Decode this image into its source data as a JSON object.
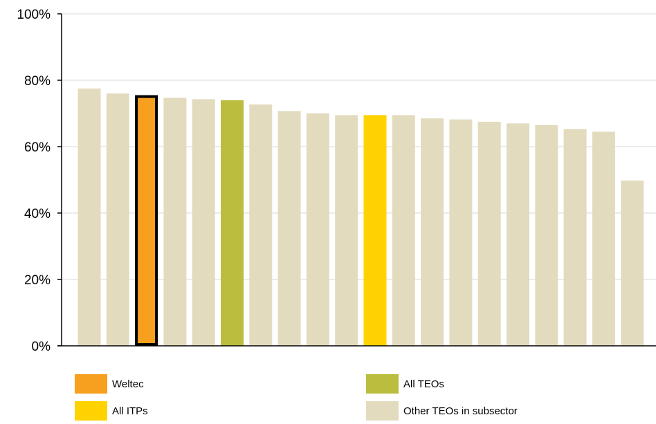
{
  "colors": {
    "weltec": "#F7A01F",
    "all_teos": "#BBBD3F",
    "all_itps": "#FFD200",
    "other": "#E3DBBE",
    "axis": "#000000",
    "grid": "#D9D9D9"
  },
  "chart_data": {
    "type": "bar",
    "title": "",
    "xlabel": "",
    "ylabel": "",
    "ylim": [
      0,
      100
    ],
    "yticks": [
      "0%",
      "20%",
      "40%",
      "60%",
      "80%",
      "100%"
    ],
    "grid": true,
    "legend_position": "bottom",
    "values": [
      77.5,
      76,
      75.5,
      74.7,
      74.3,
      74,
      72.7,
      70.7,
      70,
      69.5,
      69.5,
      69.5,
      68.5,
      68.2,
      67.5,
      67,
      66.5,
      65.3,
      64.5,
      49.8
    ],
    "groups": [
      "other",
      "other",
      "weltec",
      "other",
      "other",
      "all_teos",
      "other",
      "other",
      "other",
      "other",
      "all_itps",
      "other",
      "other",
      "other",
      "other",
      "other",
      "other",
      "other",
      "other",
      "other"
    ],
    "highlight_index": 2
  },
  "legend": [
    {
      "key": "weltec",
      "label": "Weltec"
    },
    {
      "key": "all_teos",
      "label": "All TEOs"
    },
    {
      "key": "all_itps",
      "label": "All ITPs"
    },
    {
      "key": "other",
      "label": "Other TEOs in subsector"
    }
  ]
}
